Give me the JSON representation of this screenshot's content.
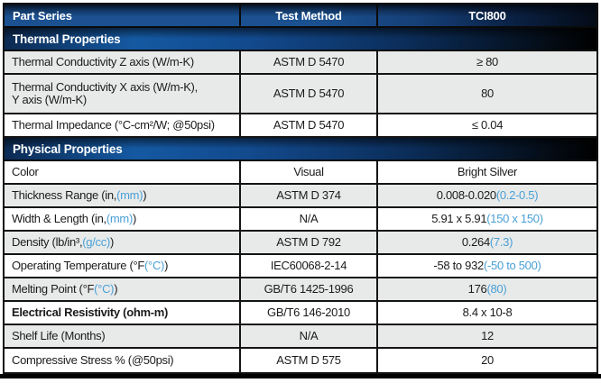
{
  "accent_color": "#4aa0d5",
  "brand_header_blue": "#1b5191",
  "brand_section_navy": "#0c2a52",
  "header": {
    "col_property": "Part Series",
    "col_method": "Test Method",
    "col_value": "TCI800"
  },
  "sections": [
    {
      "title": "Thermal Properties",
      "rows": [
        {
          "shade": "gray",
          "property": [
            {
              "text": "Thermal Conductivity Z axis (W/m-K)"
            }
          ],
          "method": "ASTM D 5470",
          "value": [
            {
              "text": "≥ 80"
            }
          ]
        },
        {
          "shade": "gray",
          "two_line": true,
          "property": [
            {
              "text": "Thermal Conductivity X axis (W/m-K),\nY axis (W/m-K)"
            }
          ],
          "method": "ASTM D 5470",
          "value": [
            {
              "text": "80"
            }
          ]
        },
        {
          "shade": "white",
          "property": [
            {
              "text": "Thermal Impedance (°C-cm²/W; @50psi)"
            }
          ],
          "method": "ASTM D 5470",
          "value": [
            {
              "text": "≤ 0.04"
            }
          ]
        }
      ]
    },
    {
      "title": "Physical Properties",
      "rows": [
        {
          "shade": "white",
          "property": [
            {
              "text": "Color"
            }
          ],
          "method": "Visual",
          "value": [
            {
              "text": "Bright Silver"
            }
          ]
        },
        {
          "shade": "gray",
          "property": [
            {
              "text": "Thickness Range (in, "
            },
            {
              "text": "(mm)",
              "accent": true
            },
            {
              "text": ")"
            }
          ],
          "method": "ASTM D 374",
          "value": [
            {
              "text": "0.008-0.020 "
            },
            {
              "text": "(0.2-0.5)",
              "accent": true
            }
          ]
        },
        {
          "shade": "white",
          "property": [
            {
              "text": "Width & Length (in, "
            },
            {
              "text": "(mm)",
              "accent": true
            },
            {
              "text": ")"
            }
          ],
          "method": "N/A",
          "value": [
            {
              "text": "5.91 x 5.91 "
            },
            {
              "text": "(150 x 150)",
              "accent": true
            }
          ]
        },
        {
          "shade": "gray",
          "property": [
            {
              "text": "Density (lb/in³, "
            },
            {
              "text": "(g/cc)",
              "accent": true
            },
            {
              "text": ")"
            }
          ],
          "method": "ASTM D 792",
          "value": [
            {
              "text": "0.264 "
            },
            {
              "text": "(7.3)",
              "accent": true
            }
          ]
        },
        {
          "shade": "white",
          "property": [
            {
              "text": "Operating Temperature (°F "
            },
            {
              "text": "(°C)",
              "accent": true
            },
            {
              "text": ")"
            }
          ],
          "method": "IEC60068-2-14",
          "value": [
            {
              "text": "-58 to 932 "
            },
            {
              "text": "(-50 to 500)",
              "accent": true
            }
          ]
        },
        {
          "shade": "gray",
          "property": [
            {
              "text": "Melting Point (°F "
            },
            {
              "text": "(°C)",
              "accent": true
            },
            {
              "text": ")"
            }
          ],
          "method": "GB/T6 1425-1996",
          "value": [
            {
              "text": "176 "
            },
            {
              "text": "(80)",
              "accent": true
            }
          ]
        },
        {
          "shade": "white",
          "bold": true,
          "property": [
            {
              "text": "Electrical Resistivity (ohm-m)"
            }
          ],
          "method": "GB/T6 146-2010",
          "value": [
            {
              "text": "8.4 x 10-8"
            }
          ]
        },
        {
          "shade": "gray",
          "property": [
            {
              "text": "Shelf Life (Months)"
            }
          ],
          "method": "N/A",
          "value": [
            {
              "text": "12"
            }
          ]
        },
        {
          "shade": "white",
          "property": [
            {
              "text": "Compressive Stress % (@50psi)"
            }
          ],
          "method": "ASTM D 575",
          "value": [
            {
              "text": "20"
            }
          ]
        }
      ]
    }
  ]
}
